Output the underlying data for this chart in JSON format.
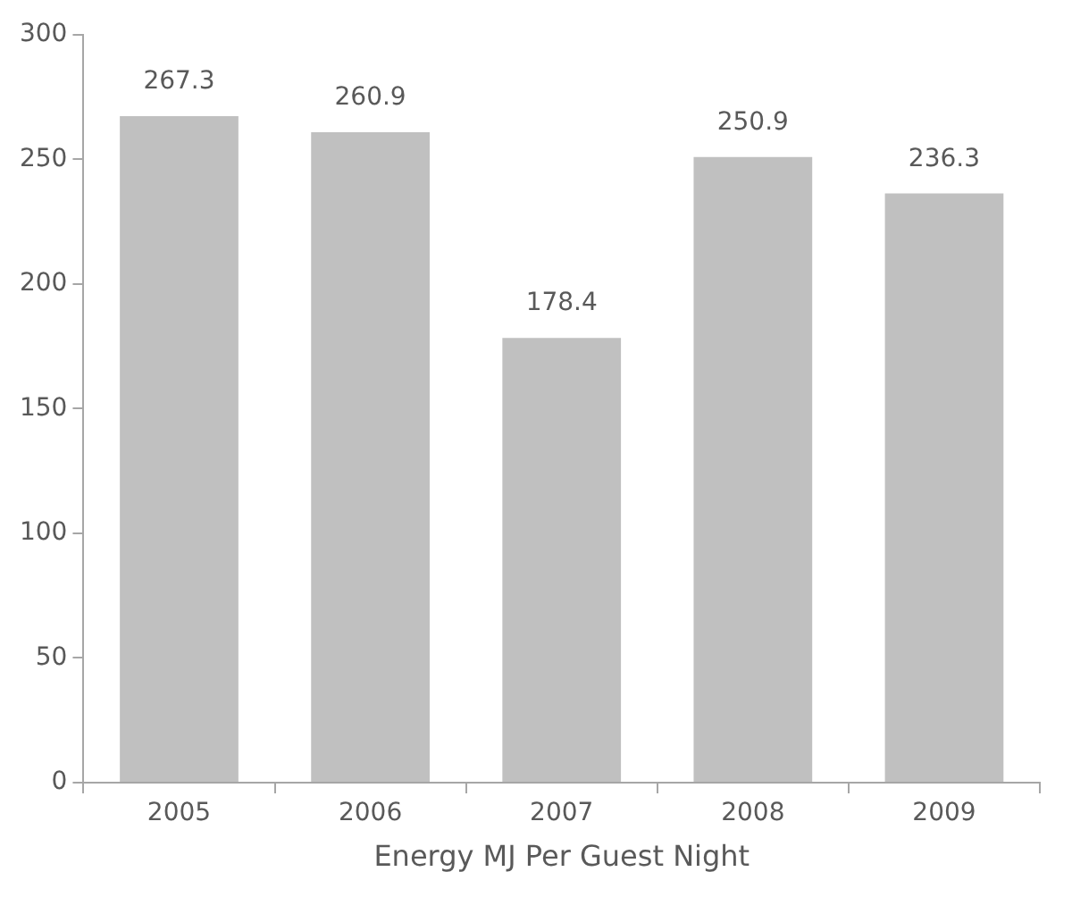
{
  "chart_data": {
    "type": "bar",
    "xlabel": "Energy MJ Per Guest Night",
    "categories": [
      "2005",
      "2006",
      "2007",
      "2008",
      "2009"
    ],
    "values": [
      267.3,
      260.9,
      178.4,
      250.9,
      236.3
    ],
    "color": "#c0c0c0",
    "ylim": [
      0,
      300
    ],
    "yticks": [
      0,
      50,
      100,
      150,
      200,
      250,
      300
    ],
    "grid": false,
    "legend": false,
    "data_labels": true
  }
}
